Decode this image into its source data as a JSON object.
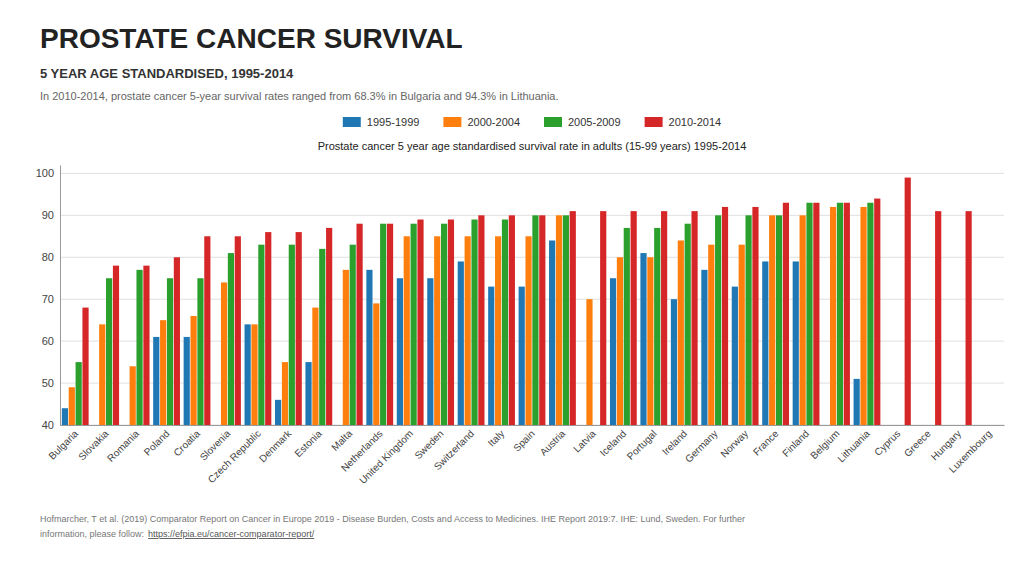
{
  "chart_data": {
    "type": "bar",
    "title": "PROSTATE CANCER SURVIVAL",
    "subtitle": "5 YEAR AGE STANDARDISED, 1995-2014",
    "annotations": [
      "In 2010-2014, prostate cancer 5-year survival rates ranged from 68.3% in Bulgaria and 94.3% in Lithuania.",
      "Prostate cancer 5 year age standardised survival rate in adults (15-99 years) 1995-2014",
      "Hofmarcher, T et al. (2019) Comparator Report on Cancer in Europe 2019 - Disease Burden, Costs and Access to Medicines. IHE Report 2019:7. IHE: Lund, Sweden. For further",
      "information, please follow:",
      "https://efpia.eu/cancer-comparator-report/"
    ],
    "categories": [
      "Bulgaria",
      "Slovakia",
      "Romania",
      "Poland",
      "Croatia",
      "Slovenia",
      "Czech Republic",
      "Denmark",
      "Estonia",
      "Malta",
      "Netherlands",
      "United Kingdom",
      "Sweden",
      "Switzerland",
      "Italy",
      "Spain",
      "Austria",
      "Latvia",
      "Iceland",
      "Portugal",
      "Ireland",
      "Germany",
      "Norway",
      "France",
      "Finland",
      "Belgium",
      "Lithuania",
      "Cyprus",
      "Greece",
      "Hungary",
      "Luxembourg"
    ],
    "series": [
      {
        "name": "1995-1999",
        "values": [
          44,
          null,
          null,
          61,
          61,
          null,
          64,
          46,
          55,
          null,
          77,
          75,
          75,
          79,
          73,
          73,
          84,
          null,
          75,
          81,
          70,
          77,
          73,
          79,
          79,
          null,
          51,
          null,
          null,
          null,
          null
        ]
      },
      {
        "name": "2000-2004",
        "values": [
          49,
          64,
          54,
          65,
          66,
          74,
          64,
          55,
          68,
          77,
          69,
          85,
          85,
          85,
          85,
          85,
          90,
          70,
          80,
          80,
          84,
          83,
          83,
          90,
          90,
          92,
          92,
          null,
          null,
          null,
          null
        ]
      },
      {
        "name": "2005-2009",
        "values": [
          55,
          75,
          77,
          75,
          75,
          81,
          83,
          83,
          82,
          83,
          88,
          88,
          88,
          89,
          89,
          90,
          90,
          null,
          87,
          87,
          88,
          90,
          90,
          90,
          93,
          93,
          93,
          null,
          null,
          null,
          null
        ]
      },
      {
        "name": "2010-2014",
        "values": [
          68,
          78,
          78,
          80,
          85,
          85,
          86,
          86,
          87,
          88,
          88,
          89,
          89,
          90,
          90,
          90,
          91,
          91,
          91,
          91,
          91,
          92,
          92,
          93,
          93,
          93,
          94,
          99,
          91,
          91,
          null
        ]
      }
    ],
    "ylim": [
      40,
      102
    ],
    "yticks": [
      40,
      50,
      60,
      70,
      80,
      90,
      100
    ],
    "grid": true,
    "legend": "top"
  }
}
